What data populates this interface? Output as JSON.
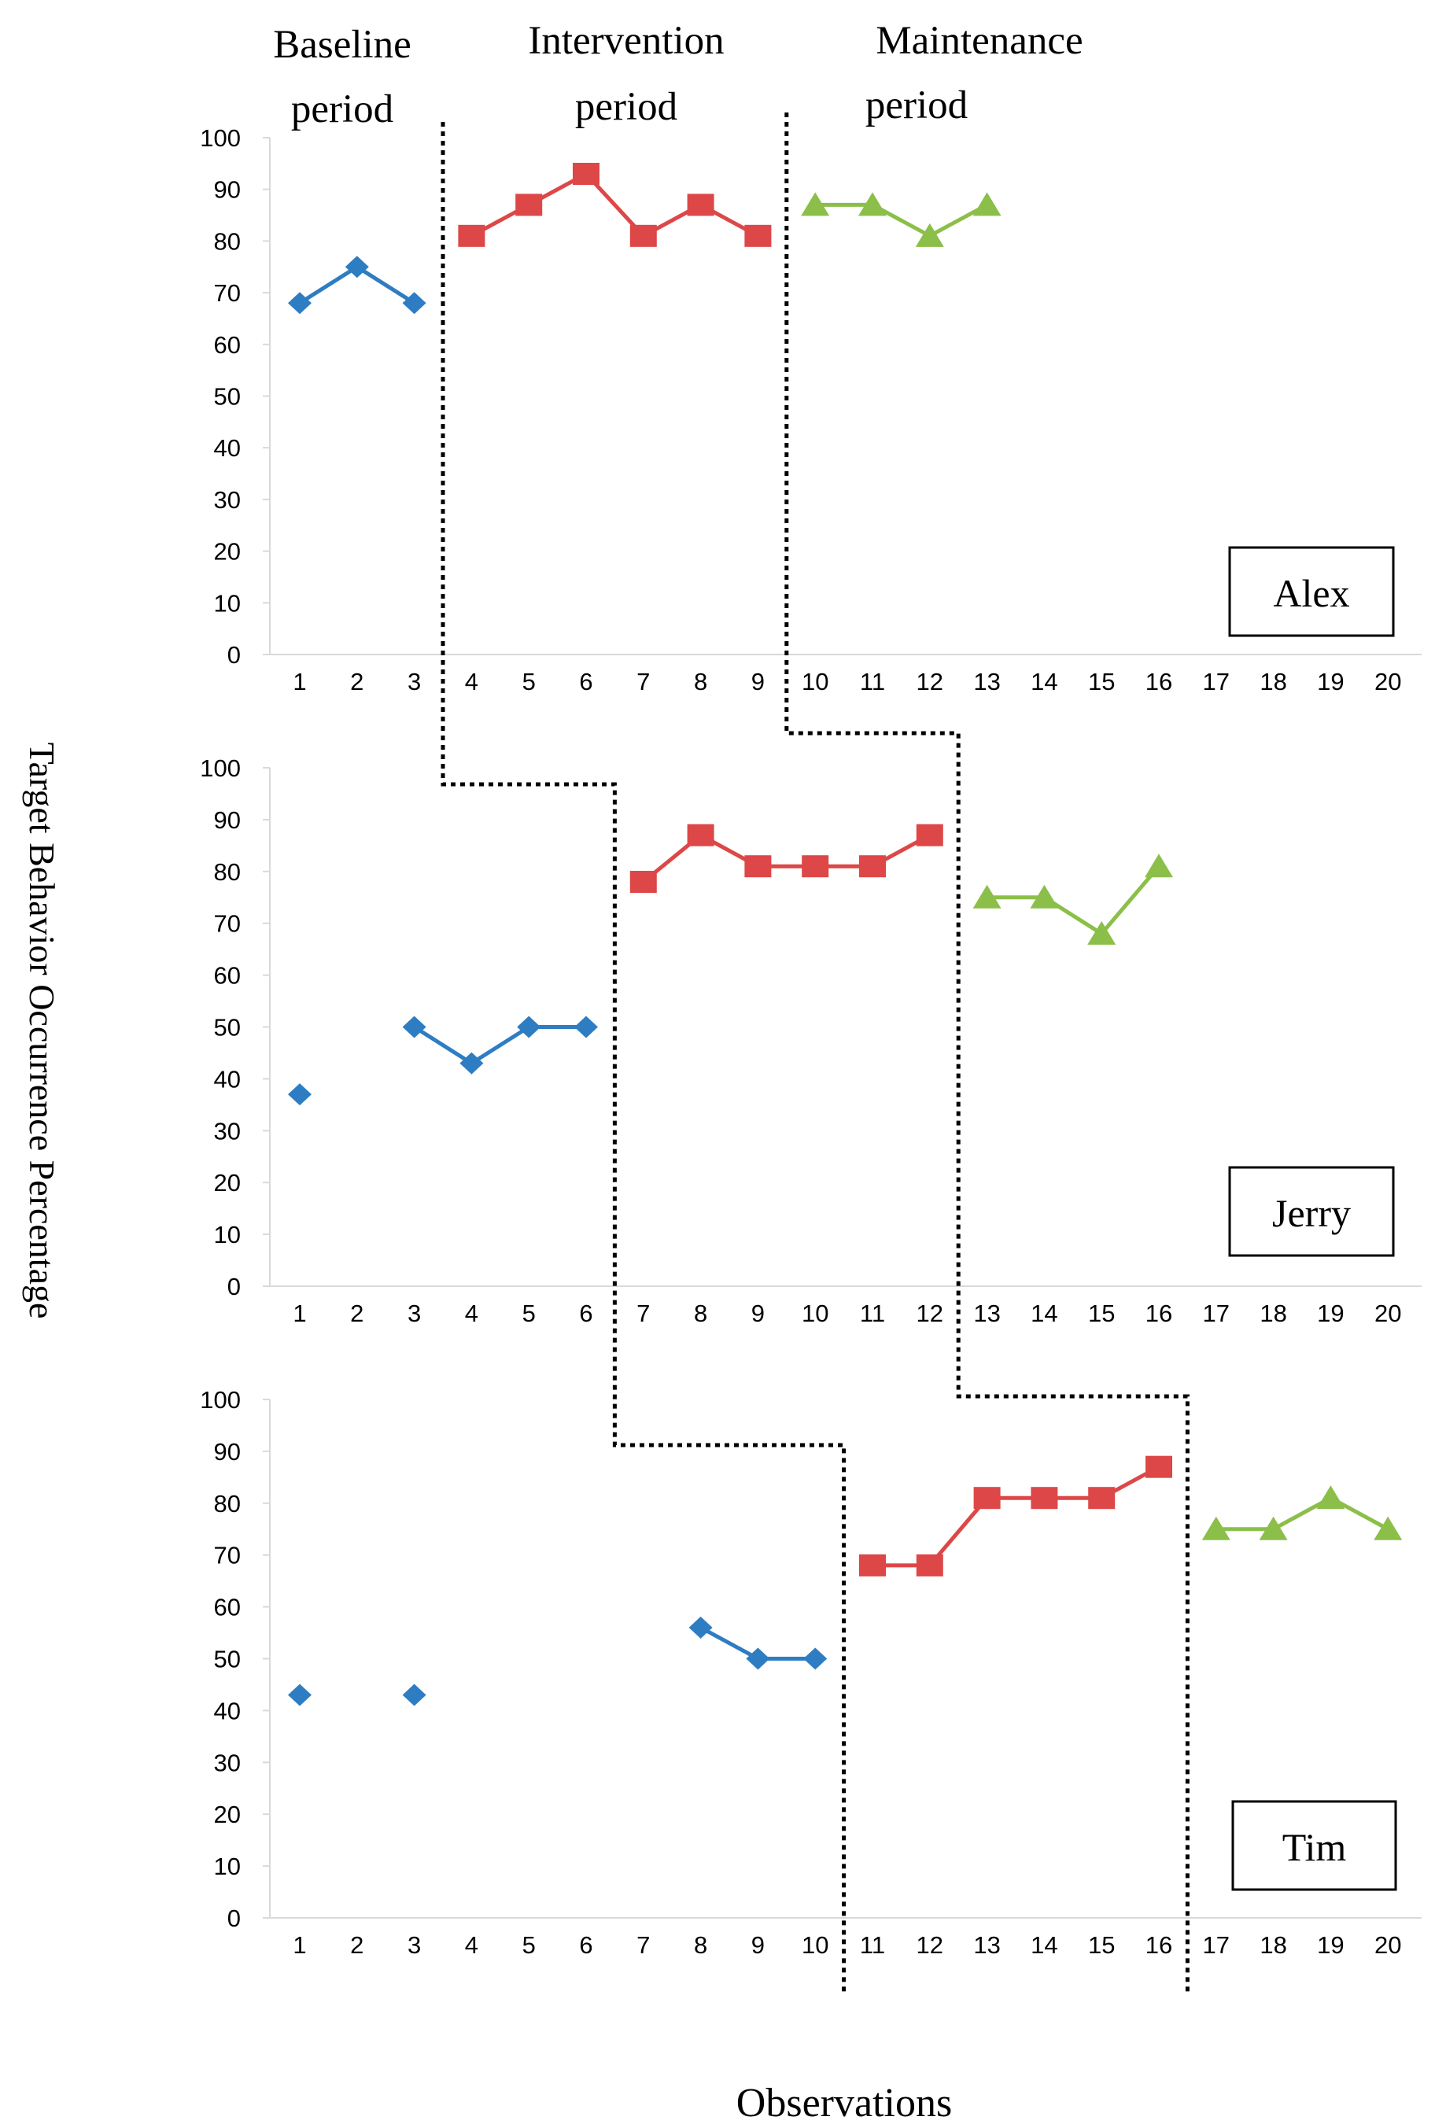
{
  "figure": {
    "y_axis_label": "Target Behavior Occurrence Percentage",
    "x_axis_label": "Observations",
    "phase_labels": [
      {
        "line1": "Baseline",
        "line2": "period"
      },
      {
        "line1": "Intervention",
        "line2": "period"
      },
      {
        "line1": "Maintenance",
        "line2": "period"
      }
    ]
  },
  "colors": {
    "baseline": "#2E7DC2",
    "intervention": "#DD4747",
    "maintenance": "#8BBF49",
    "axis": "#D9D9D9",
    "text": "#000000",
    "phase_line": "#000000"
  },
  "chart_data": [
    {
      "type": "line",
      "participant": "Alex",
      "x": [
        1,
        2,
        3,
        4,
        5,
        6,
        7,
        8,
        9,
        10,
        11,
        12,
        13,
        14,
        15,
        16,
        17,
        18,
        19,
        20
      ],
      "ylim": [
        0,
        100
      ],
      "yticks": [
        0,
        10,
        20,
        30,
        40,
        50,
        60,
        70,
        80,
        90,
        100
      ],
      "grid": false,
      "phase_change_after": [
        3.5,
        9.5
      ],
      "series": [
        {
          "name": "Baseline",
          "marker": "diamond",
          "segments": [
            [
              [
                1,
                68
              ],
              [
                2,
                75
              ],
              [
                3,
                68
              ]
            ]
          ]
        },
        {
          "name": "Intervention",
          "marker": "square",
          "segments": [
            [
              [
                4,
                81
              ],
              [
                5,
                87
              ],
              [
                6,
                93
              ],
              [
                7,
                81
              ],
              [
                8,
                87
              ],
              [
                9,
                81
              ]
            ]
          ]
        },
        {
          "name": "Maintenance",
          "marker": "triangle",
          "segments": [
            [
              [
                10,
                87
              ],
              [
                11,
                87
              ],
              [
                12,
                81
              ],
              [
                13,
                87
              ]
            ]
          ]
        }
      ]
    },
    {
      "type": "line",
      "participant": "Jerry",
      "x": [
        1,
        2,
        3,
        4,
        5,
        6,
        7,
        8,
        9,
        10,
        11,
        12,
        13,
        14,
        15,
        16,
        17,
        18,
        19,
        20
      ],
      "ylim": [
        0,
        100
      ],
      "yticks": [
        0,
        10,
        20,
        30,
        40,
        50,
        60,
        70,
        80,
        90,
        100
      ],
      "grid": false,
      "phase_change_after": [
        6.5,
        12.5
      ],
      "series": [
        {
          "name": "Baseline",
          "marker": "diamond",
          "segments": [
            [
              [
                1,
                37
              ]
            ],
            [
              [
                3,
                50
              ],
              [
                4,
                43
              ],
              [
                5,
                50
              ],
              [
                6,
                50
              ]
            ]
          ]
        },
        {
          "name": "Intervention",
          "marker": "square",
          "segments": [
            [
              [
                7,
                78
              ],
              [
                8,
                87
              ],
              [
                9,
                81
              ],
              [
                10,
                81
              ],
              [
                11,
                81
              ],
              [
                12,
                87
              ]
            ]
          ]
        },
        {
          "name": "Maintenance",
          "marker": "triangle",
          "segments": [
            [
              [
                13,
                75
              ],
              [
                14,
                75
              ],
              [
                15,
                68
              ],
              [
                16,
                81
              ]
            ]
          ]
        }
      ]
    },
    {
      "type": "line",
      "participant": "Tim",
      "x": [
        1,
        2,
        3,
        4,
        5,
        6,
        7,
        8,
        9,
        10,
        11,
        12,
        13,
        14,
        15,
        16,
        17,
        18,
        19,
        20
      ],
      "ylim": [
        0,
        100
      ],
      "yticks": [
        0,
        10,
        20,
        30,
        40,
        50,
        60,
        70,
        80,
        90,
        100
      ],
      "grid": false,
      "phase_change_after": [
        10.5,
        16.5
      ],
      "series": [
        {
          "name": "Baseline",
          "marker": "diamond",
          "segments": [
            [
              [
                1,
                43
              ]
            ],
            [
              [
                3,
                43
              ]
            ],
            [
              [
                8,
                56
              ],
              [
                9,
                50
              ],
              [
                10,
                50
              ]
            ]
          ]
        },
        {
          "name": "Intervention",
          "marker": "square",
          "segments": [
            [
              [
                11,
                68
              ],
              [
                12,
                68
              ],
              [
                13,
                81
              ],
              [
                14,
                81
              ],
              [
                15,
                81
              ],
              [
                16,
                87
              ]
            ]
          ]
        },
        {
          "name": "Maintenance",
          "marker": "triangle",
          "segments": [
            [
              [
                17,
                75
              ],
              [
                18,
                75
              ],
              [
                19,
                81
              ],
              [
                20,
                75
              ]
            ]
          ]
        }
      ]
    }
  ]
}
